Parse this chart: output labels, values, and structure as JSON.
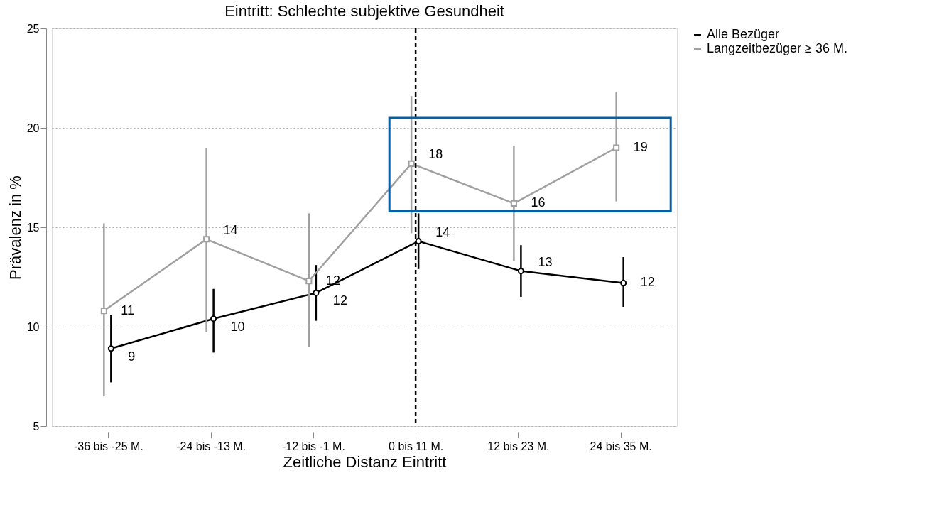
{
  "chart_data": {
    "type": "line",
    "title": "Eintritt: Schlechte subjektive Gesundheit",
    "xlabel": "Zeitliche Distanz Eintritt",
    "ylabel": "Prävalenz in %",
    "categories": [
      "-36 bis -25 M.",
      "-24 bis -13 M.",
      "-12 bis -1 M.",
      "0 bis 11 M.",
      "12 bis 23 M.",
      "24 bis 35 M."
    ],
    "series": [
      {
        "name": "Alle Bezüger",
        "color": "#000000",
        "marker": "circle",
        "values": [
          8.9,
          10.4,
          11.7,
          14.3,
          12.8,
          12.2
        ],
        "errors": [
          [
            7.2,
            10.6
          ],
          [
            8.7,
            11.9
          ],
          [
            10.3,
            13.1
          ],
          [
            12.9,
            15.7
          ],
          [
            11.5,
            14.1
          ],
          [
            11.0,
            13.5
          ]
        ],
        "value_labels": [
          "9",
          "10",
          "12",
          "14",
          "13",
          "12"
        ]
      },
      {
        "name": "Langzeitbezüger ≥ 36 M.",
        "color": "#a0a0a0",
        "marker": "square",
        "values": [
          10.8,
          14.4,
          12.3,
          18.2,
          16.2,
          19.0
        ],
        "errors": [
          [
            6.5,
            15.2
          ],
          [
            9.75,
            19.0
          ],
          [
            9.0,
            15.7
          ],
          [
            14.7,
            21.6
          ],
          [
            13.3,
            19.1
          ],
          [
            16.3,
            21.8
          ]
        ],
        "value_labels": [
          "11",
          "14",
          "12",
          "18",
          "16",
          "19"
        ]
      }
    ],
    "ylim": [
      5,
      25
    ],
    "yticks": [
      5,
      10,
      15,
      20,
      25
    ],
    "grid": "y",
    "legend": "right",
    "line_style": "solid",
    "ref_lines": [
      {
        "axis": "x",
        "value": "0 bis 11 M.",
        "color": "#000000",
        "line_style": "dashed"
      }
    ]
  }
}
